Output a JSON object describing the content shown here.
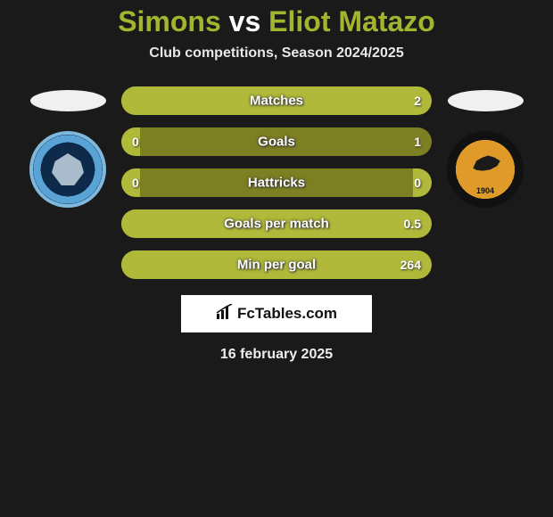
{
  "title": {
    "player1": "Simons",
    "vs": "vs",
    "player2": "Eliot Matazo"
  },
  "subtitle": "Club competitions, Season 2024/2025",
  "date": "16 february 2025",
  "brand": "FcTables.com",
  "colors": {
    "bar_base": "#7d7f23",
    "bar_fill": "#b0b93a",
    "background": "#1a1a1a",
    "title_accent": "#a3b52e"
  },
  "bars": [
    {
      "label": "Matches",
      "left": "",
      "right": "2",
      "fill_left_pct": 0,
      "fill_right_pct": 100
    },
    {
      "label": "Goals",
      "left": "0",
      "right": "1",
      "fill_left_pct": 6,
      "fill_right_pct": 0
    },
    {
      "label": "Hattricks",
      "left": "0",
      "right": "0",
      "fill_left_pct": 6,
      "fill_right_pct": 6
    },
    {
      "label": "Goals per match",
      "left": "",
      "right": "0.5",
      "fill_left_pct": 0,
      "fill_right_pct": 100
    },
    {
      "label": "Min per goal",
      "left": "",
      "right": "264",
      "fill_left_pct": 0,
      "fill_right_pct": 100
    }
  ],
  "crest_left": {
    "name": "wycombe-wanderers",
    "year": ""
  },
  "crest_right": {
    "name": "hull-city",
    "year": "1904"
  }
}
